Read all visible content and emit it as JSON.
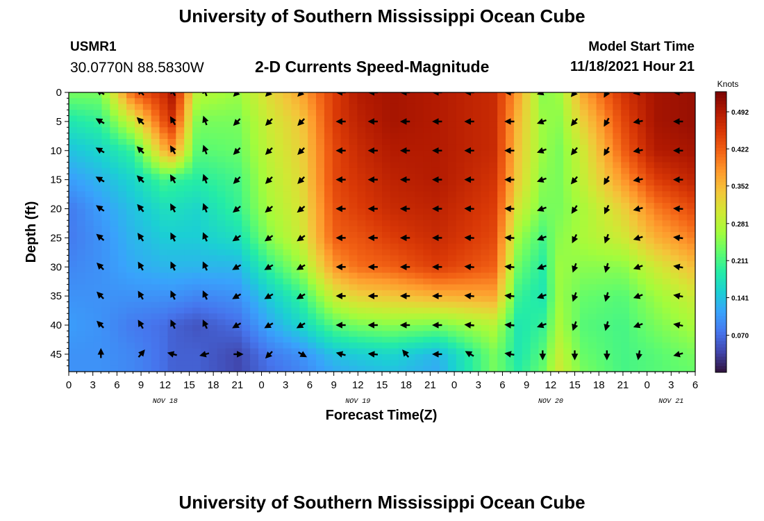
{
  "header": {
    "title": "University of Southern Mississippi Ocean Cube",
    "station": "USMR1",
    "coords": "30.0770N  88.5830W",
    "subtitle": "2-D Currents Speed-Magnitude",
    "model_start_label": "Model Start Time",
    "model_start_value": "11/18/2021 Hour 21"
  },
  "footer": {
    "title": "University of Southern Mississippi Ocean Cube"
  },
  "chart_data": {
    "type": "heatmap",
    "xlabel": "Forecast Time(Z)",
    "ylabel": "Depth (ft)",
    "colorbar_label": "Knots",
    "x_ticks": [
      "0",
      "3",
      "6",
      "9",
      "12",
      "15",
      "18",
      "21",
      "0",
      "3",
      "6",
      "9",
      "12",
      "15",
      "18",
      "21",
      "0",
      "3",
      "6",
      "9",
      "12",
      "15",
      "18",
      "21",
      "0",
      "3",
      "6"
    ],
    "date_labels": [
      {
        "label": "NOV 18",
        "hour": 12
      },
      {
        "label": "NOV 19",
        "hour": 36
      },
      {
        "label": "NOV 20",
        "hour": 60
      },
      {
        "label": "NOV 21",
        "hour": 75
      }
    ],
    "x_range_hours": [
      0,
      78
    ],
    "y_ticks": [
      0,
      5,
      10,
      15,
      20,
      25,
      30,
      35,
      40,
      45
    ],
    "y_range_ft": [
      0,
      48
    ],
    "colorbar_ticks": [
      "0.492",
      "0.422",
      "0.352",
      "0.281",
      "0.211",
      "0.141",
      "0.070"
    ],
    "color_range_knots": [
      0.0,
      0.53
    ],
    "colormap": [
      "#30123b",
      "#4145ab",
      "#4675ed",
      "#39a2fc",
      "#1bcfd4",
      "#24eca6",
      "#61fc6c",
      "#a4fc3b",
      "#d1e834",
      "#f3c63a",
      "#fe9b2d",
      "#f36315",
      "#d93806",
      "#b11901",
      "#7a0403"
    ],
    "arrow_times_hours": [
      4,
      9,
      13,
      17,
      21,
      25,
      29,
      34,
      38,
      42,
      46,
      50,
      55,
      59,
      63,
      67,
      71,
      76
    ],
    "arrow_depths_ft": [
      0,
      5,
      10,
      15,
      20,
      25,
      30,
      35,
      40,
      45
    ],
    "speed_field_knots": {
      "columns_hours": [
        0,
        4,
        8,
        12,
        13,
        16,
        21,
        25,
        29,
        33,
        36,
        40,
        46,
        53,
        56,
        59,
        61,
        64,
        69,
        73,
        78
      ],
      "rows_depth_ft": [
        0,
        5,
        10,
        15,
        20,
        25,
        30,
        35,
        40,
        45,
        48
      ],
      "values": [
        [
          0.24,
          0.24,
          0.42,
          0.47,
          0.5,
          0.28,
          0.26,
          0.32,
          0.37,
          0.45,
          0.49,
          0.5,
          0.49,
          0.47,
          0.37,
          0.25,
          0.26,
          0.37,
          0.46,
          0.5,
          0.51
        ],
        [
          0.18,
          0.2,
          0.3,
          0.44,
          0.46,
          0.24,
          0.24,
          0.3,
          0.34,
          0.45,
          0.48,
          0.5,
          0.49,
          0.47,
          0.35,
          0.26,
          0.25,
          0.33,
          0.44,
          0.5,
          0.51
        ],
        [
          0.14,
          0.16,
          0.2,
          0.36,
          0.38,
          0.22,
          0.23,
          0.29,
          0.33,
          0.44,
          0.47,
          0.49,
          0.49,
          0.47,
          0.34,
          0.26,
          0.24,
          0.3,
          0.42,
          0.49,
          0.5
        ],
        [
          0.11,
          0.13,
          0.16,
          0.21,
          0.2,
          0.19,
          0.21,
          0.28,
          0.32,
          0.44,
          0.46,
          0.48,
          0.49,
          0.46,
          0.33,
          0.25,
          0.24,
          0.29,
          0.38,
          0.45,
          0.48
        ],
        [
          0.08,
          0.11,
          0.14,
          0.17,
          0.17,
          0.16,
          0.2,
          0.27,
          0.31,
          0.43,
          0.45,
          0.47,
          0.48,
          0.45,
          0.3,
          0.24,
          0.24,
          0.27,
          0.33,
          0.4,
          0.44
        ],
        [
          0.08,
          0.1,
          0.13,
          0.15,
          0.15,
          0.15,
          0.17,
          0.25,
          0.3,
          0.42,
          0.43,
          0.45,
          0.47,
          0.44,
          0.26,
          0.21,
          0.25,
          0.27,
          0.3,
          0.36,
          0.4
        ],
        [
          0.09,
          0.1,
          0.12,
          0.13,
          0.13,
          0.13,
          0.13,
          0.2,
          0.26,
          0.38,
          0.41,
          0.42,
          0.45,
          0.42,
          0.23,
          0.19,
          0.26,
          0.25,
          0.25,
          0.3,
          0.35
        ],
        [
          0.1,
          0.1,
          0.1,
          0.1,
          0.1,
          0.09,
          0.1,
          0.15,
          0.2,
          0.3,
          0.33,
          0.34,
          0.36,
          0.37,
          0.2,
          0.18,
          0.26,
          0.23,
          0.22,
          0.26,
          0.3
        ],
        [
          0.11,
          0.1,
          0.08,
          0.07,
          0.06,
          0.05,
          0.07,
          0.12,
          0.16,
          0.22,
          0.24,
          0.25,
          0.24,
          0.28,
          0.18,
          0.2,
          0.27,
          0.22,
          0.21,
          0.24,
          0.27
        ],
        [
          0.1,
          0.1,
          0.09,
          0.07,
          0.06,
          0.06,
          0.04,
          0.08,
          0.1,
          0.14,
          0.15,
          0.16,
          0.13,
          0.24,
          0.18,
          0.22,
          0.29,
          0.23,
          0.21,
          0.22,
          0.24
        ],
        [
          0.1,
          0.1,
          0.09,
          0.07,
          0.06,
          0.06,
          0.04,
          0.07,
          0.09,
          0.12,
          0.13,
          0.14,
          0.12,
          0.24,
          0.19,
          0.23,
          0.3,
          0.24,
          0.21,
          0.22,
          0.23
        ]
      ]
    },
    "direction_bands_deg": {
      "comment_free": true,
      "columns_hours": [
        4,
        9,
        13,
        17,
        21,
        25,
        29,
        34,
        38,
        42,
        46,
        50,
        55,
        59,
        63,
        67,
        71,
        76
      ],
      "surface": [
        300,
        315,
        330,
        340,
        225,
        225,
        225,
        270,
        270,
        270,
        270,
        270,
        270,
        250,
        220,
        210,
        260,
        270
      ],
      "middle": [
        315,
        330,
        335,
        335,
        240,
        240,
        240,
        270,
        270,
        270,
        270,
        275,
        275,
        250,
        200,
        195,
        250,
        280
      ],
      "bottom": [
        0,
        40,
        285,
        255,
        90,
        225,
        120,
        285,
        275,
        320,
        270,
        300,
        280,
        180,
        180,
        180,
        190,
        255
      ]
    }
  }
}
